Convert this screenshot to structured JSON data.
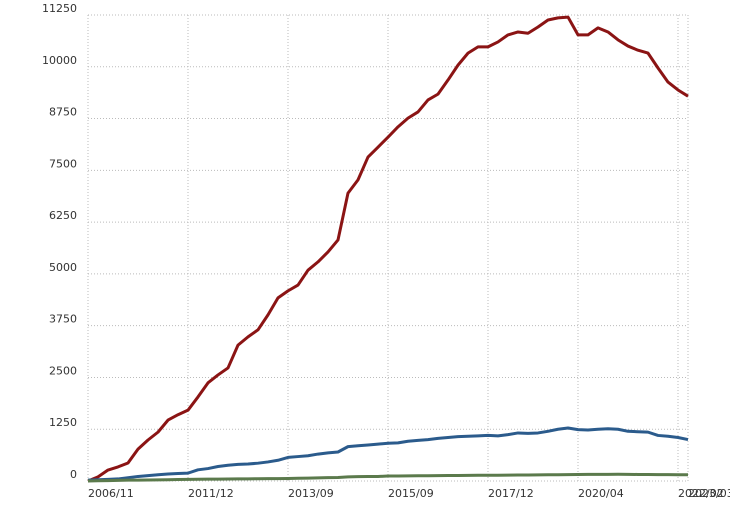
{
  "chart_data": {
    "type": "line",
    "categories": [
      "2006/11",
      null,
      null,
      null,
      null,
      null,
      null,
      null,
      null,
      null,
      "2011/12",
      null,
      null,
      null,
      null,
      null,
      null,
      null,
      null,
      null,
      "2013/09",
      null,
      null,
      null,
      null,
      null,
      null,
      null,
      null,
      null,
      "2015/09",
      null,
      null,
      null,
      null,
      null,
      null,
      null,
      null,
      null,
      "2017/12",
      null,
      null,
      null,
      null,
      null,
      null,
      null,
      null,
      "2020/04",
      null,
      null,
      null,
      null,
      null,
      null,
      null,
      null,
      null,
      "2022/02",
      "2023/03"
    ],
    "series": [
      {
        "color": "#8b1414",
        "values": [
          0,
          100,
          265,
          340,
          435,
          770,
          990,
          1180,
          1470,
          1600,
          1710,
          2030,
          2370,
          2560,
          2730,
          3280,
          3480,
          3650,
          4010,
          4420,
          4590,
          4730,
          5090,
          5290,
          5530,
          5820,
          6950,
          7270,
          7820,
          8060,
          8300,
          8550,
          8760,
          8910,
          9200,
          9340,
          9680,
          10040,
          10330,
          10480,
          10480,
          10600,
          10770,
          10840,
          10810,
          10960,
          11130,
          11180,
          11200,
          10770,
          10770,
          10940,
          10840,
          10650,
          10500,
          10400,
          10330,
          9970,
          9630,
          9440,
          9290
        ]
      },
      {
        "color": "#2b5b8c",
        "values": [
          20,
          30,
          40,
          50,
          80,
          110,
          130,
          150,
          170,
          180,
          190,
          270,
          300,
          350,
          380,
          400,
          410,
          430,
          460,
          500,
          570,
          590,
          610,
          650,
          680,
          700,
          830,
          850,
          870,
          890,
          910,
          920,
          960,
          980,
          1000,
          1030,
          1050,
          1070,
          1080,
          1090,
          1100,
          1090,
          1120,
          1160,
          1150,
          1160,
          1200,
          1250,
          1280,
          1240,
          1230,
          1250,
          1260,
          1250,
          1200,
          1190,
          1180,
          1100,
          1080,
          1050,
          1000
        ]
      },
      {
        "color": "#5b7a4c",
        "values": [
          0,
          5,
          10,
          15,
          20,
          22,
          25,
          28,
          30,
          35,
          40,
          42,
          44,
          46,
          48,
          50,
          52,
          54,
          56,
          58,
          60,
          65,
          70,
          75,
          80,
          85,
          100,
          105,
          108,
          110,
          120,
          122,
          124,
          126,
          128,
          130,
          132,
          134,
          136,
          138,
          140,
          140,
          142,
          144,
          146,
          148,
          150,
          152,
          154,
          156,
          160,
          160,
          160,
          162,
          160,
          158,
          156,
          155,
          154,
          152,
          150
        ]
      }
    ],
    "ylim": [
      0,
      11250
    ],
    "yticks": [
      0,
      1250,
      2500,
      3750,
      5000,
      6250,
      7500,
      8750,
      10000,
      11250
    ],
    "grid": true
  }
}
